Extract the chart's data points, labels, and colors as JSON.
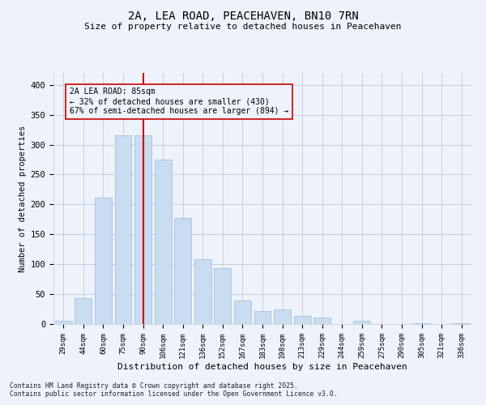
{
  "title": "2A, LEA ROAD, PEACEHAVEN, BN10 7RN",
  "subtitle": "Size of property relative to detached houses in Peacehaven",
  "xlabel": "Distribution of detached houses by size in Peacehaven",
  "ylabel": "Number of detached properties",
  "categories": [
    "29sqm",
    "44sqm",
    "60sqm",
    "75sqm",
    "90sqm",
    "106sqm",
    "121sqm",
    "136sqm",
    "152sqm",
    "167sqm",
    "183sqm",
    "198sqm",
    "213sqm",
    "229sqm",
    "244sqm",
    "259sqm",
    "275sqm",
    "290sqm",
    "305sqm",
    "321sqm",
    "336sqm"
  ],
  "values": [
    5,
    44,
    211,
    315,
    316,
    275,
    178,
    109,
    93,
    39,
    22,
    24,
    14,
    11,
    0,
    5,
    0,
    0,
    1,
    0,
    2
  ],
  "bar_color": "#c9dcf0",
  "bar_edgecolor": "#9bbcd8",
  "marker_x": "90sqm",
  "annotation_title": "2A LEA ROAD: 85sqm",
  "annotation_line1": "← 32% of detached houses are smaller (430)",
  "annotation_line2": "67% of semi-detached houses are larger (894) →",
  "vline_color": "#cc0000",
  "footnote1": "Contains HM Land Registry data © Crown copyright and database right 2025.",
  "footnote2": "Contains public sector information licensed under the Open Government Licence v3.0.",
  "bg_color": "#eef2fb",
  "ylim": [
    0,
    420
  ],
  "yticks": [
    0,
    50,
    100,
    150,
    200,
    250,
    300,
    350,
    400
  ]
}
